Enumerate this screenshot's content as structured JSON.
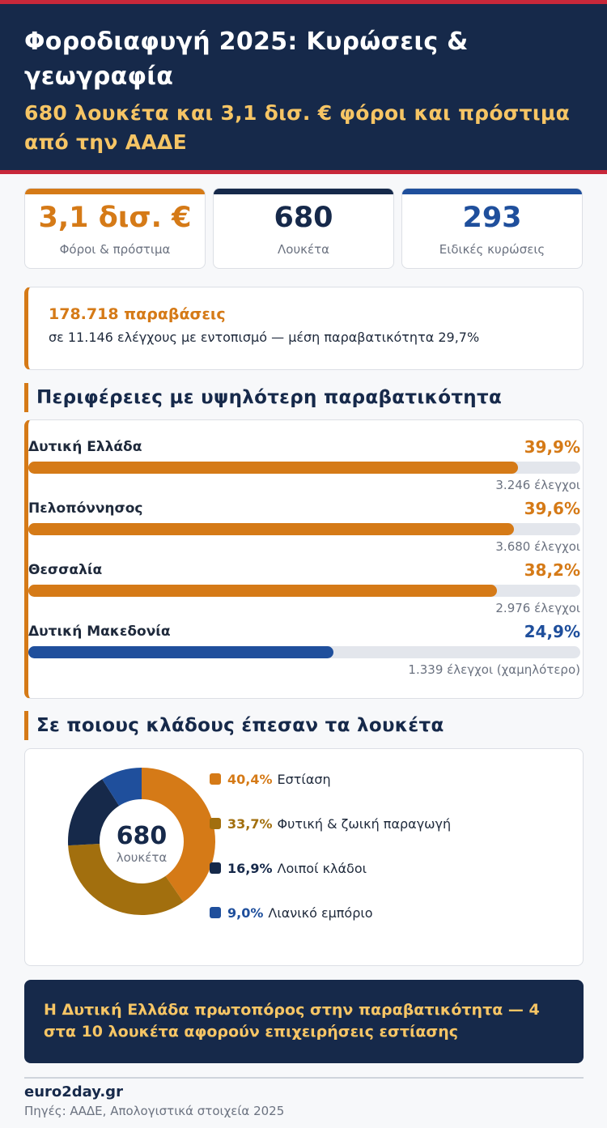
{
  "header": {
    "title": "Φοροδιαφυγή 2025: Κυρώσεις & γεωγραφία",
    "subtitle": "680 λουκέτα και 3,1 δισ. € φόροι και πρόστιμα από την ΑΑΔΕ"
  },
  "kpis": [
    {
      "value": "3,1 δισ. €",
      "label": "Φόροι & πρόστιμα",
      "color": "#d57a17"
    },
    {
      "value": "680",
      "label": "Λουκέτα",
      "color": "#16294a"
    },
    {
      "value": "293",
      "label": "Ειδικές κυρώσεις",
      "color": "#1f4f9c"
    }
  ],
  "callout": {
    "title": "178.718 παραβάσεις",
    "text": "σε 11.146 ελέγχους με εντοπισμό — μέση παραβατικότητα 29,7%"
  },
  "sections": {
    "regions_title": "Περιφέρειες με υψηλότερη παραβατικότητα",
    "sectors_title": "Σε ποιους κλάδους έπεσαν τα λουκέτα"
  },
  "chart_data": [
    {
      "type": "bar",
      "orientation": "horizontal",
      "title": "Περιφέρειες με υψηλότερη παραβατικότητα",
      "xlim": [
        0,
        45
      ],
      "categories": [
        "Δυτική Ελλάδα",
        "Πελοπόννησος",
        "Θεσσαλία",
        "Δυτική Μακεδονία"
      ],
      "values": [
        39.9,
        39.6,
        38.2,
        24.9
      ],
      "value_labels": [
        "39,9%",
        "39,6%",
        "38,2%",
        "24,9%"
      ],
      "checks_labels": [
        "3.246 έλεγχοι",
        "3.680 έλεγχοι",
        "2.976 έλεγχοι",
        "1.339 έλεγχοι (χαμηλότερο)"
      ],
      "colors": [
        "#d57a17",
        "#d57a17",
        "#d57a17",
        "#1f4f9c"
      ]
    },
    {
      "type": "pie",
      "title": "Σε ποιους κλάδους έπεσαν τα λουκέτα",
      "center_value": "680",
      "center_label": "λουκέτα",
      "categories": [
        "Εστίαση",
        "Φυτική & ζωική παραγωγή",
        "Λοιποί κλάδοι",
        "Λιανικό εμπόριο"
      ],
      "values": [
        40.4,
        33.7,
        16.9,
        9.0
      ],
      "value_labels": [
        "40,4%",
        "33,7%",
        "16,9%",
        "9,0%"
      ],
      "colors": [
        "#d57a17",
        "#a26f0e",
        "#16294a",
        "#1f4f9c"
      ],
      "legend_position": "right"
    }
  ],
  "banner": {
    "text": "Η Δυτική Ελλάδα πρωτοπόρος στην παραβατικότητα — 4 στα 10 λουκέτα αφορούν επιχειρήσεις εστίασης"
  },
  "footer": {
    "brand": "euro2day.gr",
    "source": "Πηγές: ΑΑΔΕ, Απολογιστικά στοιχεία 2025"
  }
}
